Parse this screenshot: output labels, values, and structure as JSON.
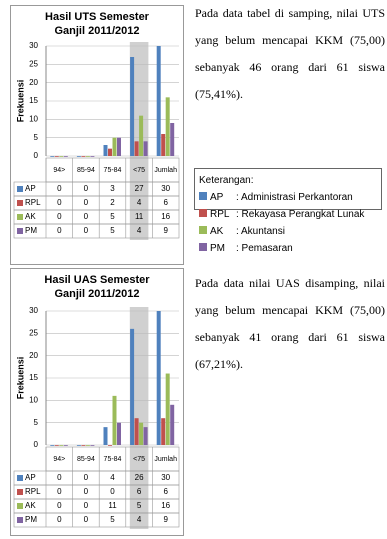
{
  "document": {
    "paragraphs": [
      "Pada data tabel di samping, nilai UTS yang belum mencapai KKM (75,00) sebanyak 46 orang dari 61 siswa (75,41%).",
      "Pada data nilai UAS disamping, nilai yang belum mencapai KKM (75,00) sebanyak 41 orang dari 61 siswa (67,21%)."
    ],
    "legend": {
      "title": "Keterangan:",
      "items": [
        {
          "code": "AP",
          "label": ": Administrasi Perkantoran"
        },
        {
          "code": "RPL",
          "label": ": Rekayasa Perangkat Lunak"
        },
        {
          "code": "AK",
          "label": ": Akuntansi"
        },
        {
          "code": "PM",
          "label": ": Pemasaran"
        }
      ]
    }
  },
  "chart_data": [
    {
      "type": "bar",
      "title": "Hasil UTS Semester Ganjil 2011/2012",
      "y_label": "Frekuensi",
      "categories": [
        "94>",
        "85-94",
        "75-84",
        "<75",
        "Jumlah"
      ],
      "series": [
        {
          "name": "AP",
          "color": "#4f81bd",
          "values": [
            0,
            0,
            3,
            27,
            30
          ]
        },
        {
          "name": "RPL",
          "color": "#c0504d",
          "values": [
            0,
            0,
            2,
            4,
            6
          ]
        },
        {
          "name": "AK",
          "color": "#9bbb59",
          "values": [
            0,
            0,
            5,
            11,
            16
          ]
        },
        {
          "name": "PM",
          "color": "#8064a2",
          "values": [
            0,
            0,
            5,
            4,
            9
          ]
        }
      ],
      "ylim": [
        0,
        30
      ],
      "yticks": [
        0,
        5,
        10,
        15,
        20,
        25,
        30
      ],
      "grid": true
    },
    {
      "type": "bar",
      "title": "Hasil UAS Semester Ganjil 2011/2012",
      "y_label": "Frekuensi",
      "categories": [
        "94>",
        "85-94",
        "75-84",
        "<75",
        "Jumlah"
      ],
      "series": [
        {
          "name": "AP",
          "color": "#4f81bd",
          "values": [
            0,
            0,
            4,
            26,
            30
          ]
        },
        {
          "name": "RPL",
          "color": "#c0504d",
          "values": [
            0,
            0,
            0,
            6,
            6
          ]
        },
        {
          "name": "AK",
          "color": "#9bbb59",
          "values": [
            0,
            0,
            11,
            5,
            16
          ]
        },
        {
          "name": "PM",
          "color": "#8064a2",
          "values": [
            0,
            0,
            5,
            4,
            9
          ]
        }
      ],
      "ylim": [
        0,
        30
      ],
      "yticks": [
        0,
        5,
        10,
        15,
        20,
        25,
        30
      ],
      "grid": true
    }
  ]
}
